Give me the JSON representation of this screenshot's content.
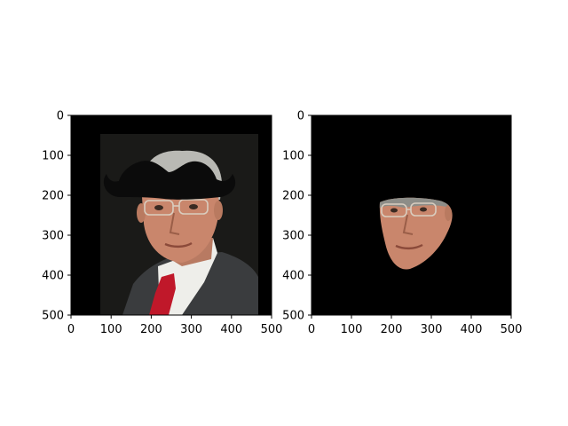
{
  "figure": {
    "panels": [
      {
        "name": "left",
        "image": {
          "description": "photo of a man in a dark suit, white shirt and red tie with a black mustache graphic placed across his forehead, on a black canvas",
          "colors": {
            "canvas": "#000000",
            "backdrop": "#1a1a18",
            "suit": "#3a3c3e",
            "shirt": "#eeeeea",
            "tie": "#c0182a",
            "skin": "#c9866c",
            "hair": "#b9b9b4",
            "mustache": "#0b0b0b"
          }
        },
        "x_ticks": [
          "0",
          "100",
          "200",
          "300",
          "400",
          "500"
        ],
        "y_ticks": [
          "0",
          "100",
          "200",
          "300",
          "400",
          "500"
        ]
      },
      {
        "name": "right",
        "image": {
          "description": "black canvas with only a cut-out patch of the man's face (glasses, nose, mouth) visible",
          "colors": {
            "canvas": "#000000",
            "skin": "#c9866c",
            "hair": "#8d8d88"
          }
        },
        "x_ticks": [
          "0",
          "100",
          "200",
          "300",
          "400",
          "500"
        ],
        "y_ticks": [
          "0",
          "100",
          "200",
          "300",
          "400",
          "500"
        ]
      }
    ]
  }
}
